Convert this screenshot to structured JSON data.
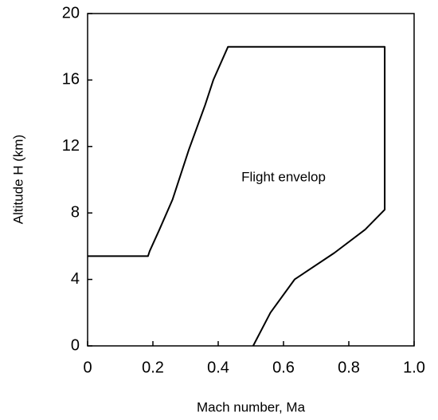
{
  "chart_data": {
    "type": "line",
    "x_label": "Mach number, Ma",
    "y_label": "Altitude H (km)",
    "annotation": "Flight envelop",
    "x": [
      0,
      0.185,
      0.19,
      0.22,
      0.26,
      0.31,
      0.36,
      0.385,
      0.43,
      0.91,
      0.91,
      0.85,
      0.756,
      0.634,
      0.56,
      0.507
    ],
    "series": [
      {
        "color": "#000000",
        "values": [
          5.4,
          5.4,
          5.7,
          7.0,
          8.8,
          11.8,
          14.5,
          16.0,
          18,
          18,
          8.2,
          7.0,
          5.6,
          4.0,
          2.0,
          0
        ]
      }
    ],
    "xlim": [
      0,
      1.0
    ],
    "xticks": [
      0,
      0.2,
      0.4,
      0.6,
      0.8,
      {
        "value": 1.0,
        "label": "1.0"
      }
    ],
    "ylim": [
      0,
      20
    ],
    "yticks": [
      0,
      4,
      8,
      12,
      16,
      20
    ]
  }
}
